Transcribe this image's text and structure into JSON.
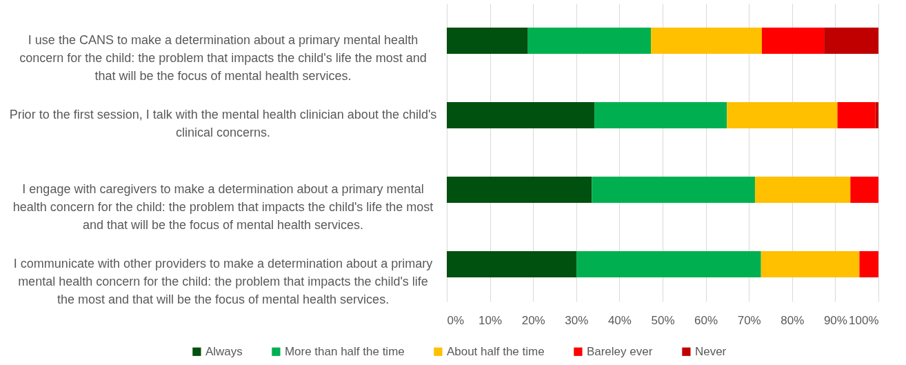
{
  "chart_data": {
    "type": "bar",
    "orientation": "horizontal",
    "stacked": true,
    "categories": [
      "I use the CANS to make a determination about a primary mental health concern for the child:  the problem that impacts the child's life the most and that will be the focus of mental health services.",
      "Prior to the first session, I talk with the mental health clinician about the child's clinical concerns.",
      "I engage with caregivers to make a determination about a primary mental health concern for the child:  the problem that impacts the child's life the most and that will be the focus of mental health services.",
      "I communicate with other providers to make a determination about a primary mental health concern for the child:  the problem that impacts the child's life the most and that will be the focus of mental health services."
    ],
    "series": [
      {
        "name": "Always",
        "color": "#00500f",
        "values": [
          18.8,
          34.2,
          33.6,
          30.1
        ]
      },
      {
        "name": "More than half the time",
        "color": "#00b050",
        "values": [
          28.5,
          30.7,
          37.8,
          42.7
        ]
      },
      {
        "name": "About half the time",
        "color": "#ffc000",
        "values": [
          25.7,
          25.6,
          22.1,
          22.8
        ]
      },
      {
        "name": "Bareley ever",
        "color": "#ff0000",
        "values": [
          14.4,
          8.8,
          6.5,
          4.4
        ]
      },
      {
        "name": "Never",
        "color": "#c00000",
        "values": [
          12.6,
          0.7,
          null,
          null
        ]
      }
    ],
    "xlim": [
      0,
      100
    ],
    "xticks": [
      {
        "value": 0,
        "label": "0%"
      },
      {
        "value": 10,
        "label": "10%"
      },
      {
        "value": 20,
        "label": "20%"
      },
      {
        "value": 30,
        "label": "30%"
      },
      {
        "value": 40,
        "label": "40%"
      },
      {
        "value": 50,
        "label": "50%"
      },
      {
        "value": 60,
        "label": "60%"
      },
      {
        "value": 70,
        "label": "70%"
      },
      {
        "value": 80,
        "label": "80%"
      },
      {
        "value": 90,
        "label": "90%"
      },
      {
        "value": 100,
        "label": "100%"
      }
    ],
    "grid": "x",
    "legend": "bottom"
  }
}
